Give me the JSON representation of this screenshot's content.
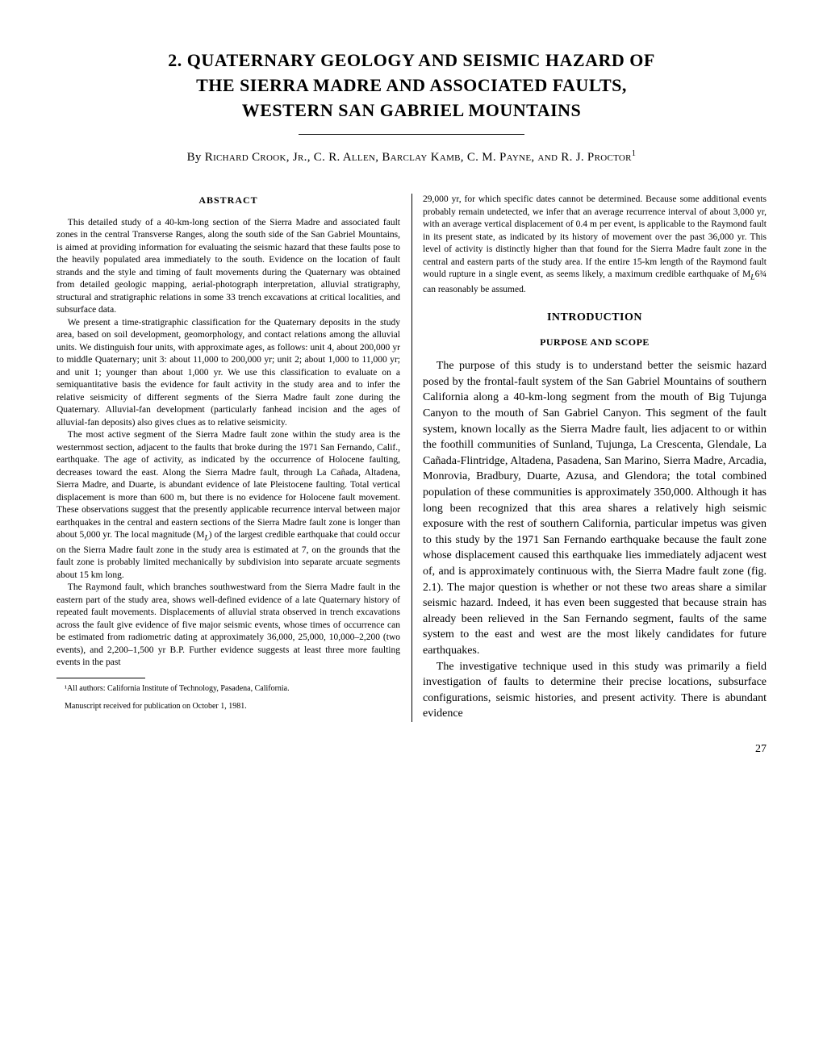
{
  "title": {
    "line1": "2. QUATERNARY GEOLOGY AND SEISMIC HAZARD OF",
    "line2": "THE SIERRA MADRE AND ASSOCIATED FAULTS,",
    "line3": "WESTERN SAN GABRIEL MOUNTAINS"
  },
  "authors_prefix": "By ",
  "authors": "Richard Crook, Jr., C. R. Allen, Barclay Kamb, C. M. Payne, and R. J. Proctor",
  "authors_sup": "1",
  "abstract_heading": "ABSTRACT",
  "abstract": {
    "p1": "This detailed study of a 40-km-long section of the Sierra Madre and associated fault zones in the central Transverse Ranges, along the south side of the San Gabriel Mountains, is aimed at providing information for evaluating the seismic hazard that these faults pose to the heavily populated area immediately to the south. Evidence on the location of fault strands and the style and timing of fault movements during the Quaternary was obtained from detailed geologic mapping, aerial-photograph interpretation, alluvial stratigraphy, structural and stratigraphic relations in some 33 trench excavations at critical localities, and subsurface data.",
    "p2": "We present a time-stratigraphic classification for the Quaternary deposits in the study area, based on soil development, geomorphology, and contact relations among the alluvial units. We distinguish four units, with approximate ages, as follows: unit 4, about 200,000 yr to middle Quaternary; unit 3: about 11,000 to 200,000 yr; unit 2; about 1,000 to 11,000 yr; and unit 1; younger than about 1,000 yr. We use this classification to evaluate on a semiquantitative basis the evidence for fault activity in the study area and to infer the relative seismicity of different segments of the Sierra Madre fault zone during the Quaternary. Alluvial-fan development (particularly fanhead incision and the ages of alluvial-fan deposits) also gives clues as to relative seismicity.",
    "p3": "The most active segment of the Sierra Madre fault zone within the study area is the westernmost section, adjacent to the faults that broke during the 1971 San Fernando, Calif., earthquake. The age of activity, as indicated by the occurrence of Holocene faulting, decreases toward the east. Along the Sierra Madre fault, through La Cañada, Altadena, Sierra Madre, and Duarte, is abundant evidence of late Pleistocene faulting. Total vertical displacement is more than 600 m, but there is no evidence for Holocene fault movement. These observations suggest that the presently applicable recurrence interval between major earthquakes in the central and eastern sections of the Sierra Madre fault zone is longer than about 5,000 yr. The local magnitude (M",
    "p3_sub": "L",
    "p3_cont": ") of the largest credible earthquake that could occur on the Sierra Madre fault zone in the study area is estimated at 7, on the grounds that the fault zone is probably limited mechanically by subdivision into separate arcuate segments about 15 km long.",
    "p4": "The Raymond fault, which branches southwestward from the Sierra Madre fault in the eastern part of the study area, shows well-defined evidence of a late Quaternary history of repeated fault movements. Displacements of alluvial strata observed in trench excavations across the fault give evidence of five major seismic events, whose times of occurrence can be estimated from radiometric dating at approximately 36,000, 25,000, 10,000–2,200 (two events), and 2,200–1,500 yr B.P. Further evidence suggests at least three more faulting events in the past",
    "p5": "29,000 yr, for which specific dates cannot be determined. Because some additional events probably remain undetected, we infer that an average recurrence interval of about 3,000 yr, with an average vertical displacement of 0.4 m per event, is applicable to the Raymond fault in its present state, as indicated by its history of movement over the past 36,000 yr. This level of activity is distinctly higher than that found for the Sierra Madre fault zone in the central and eastern parts of the study area. If the entire 15-km length of the Raymond fault would rupture in a single event, as seems likely, a maximum credible earthquake of M",
    "p5_sub": "L",
    "p5_cont": "6¾ can reasonably be assumed."
  },
  "intro_heading": "INTRODUCTION",
  "purpose_heading": "PURPOSE AND SCOPE",
  "intro": {
    "p1": "The purpose of this study is to understand better the seismic hazard posed by the frontal-fault system of the San Gabriel Mountains of southern California along a 40-km-long segment from the mouth of Big Tujunga Canyon to the mouth of San Gabriel Canyon. This segment of the fault system, known locally as the Sierra Madre fault, lies adjacent to or within the foothill communities of Sunland, Tujunga, La Crescenta, Glendale, La Cañada-Flintridge, Altadena, Pasadena, San Marino, Sierra Madre, Arcadia, Monrovia, Bradbury, Duarte, Azusa, and Glendora; the total combined population of these communities is approximately 350,000. Although it has long been recognized that this area shares a relatively high seismic exposure with the rest of southern California, particular impetus was given to this study by the 1971 San Fernando earthquake because the fault zone whose displacement caused this earthquake lies immediately adjacent west of, and is approximately continuous with, the Sierra Madre fault zone (fig. 2.1). The major question is whether or not these two areas share a similar seismic hazard. Indeed, it has even been suggested that because strain has already been relieved in the San Fernando segment, faults of the same system to the east and west are the most likely candidates for future earthquakes.",
    "p2": "The investigative technique used in this study was primarily a field investigation of faults to determine their precise locations, subsurface configurations, seismic histories, and present activity. There is abundant evidence"
  },
  "footnote": "¹All authors: California Institute of Technology, Pasadena, California.",
  "manuscript_note": "Manuscript received for publication on October 1, 1981.",
  "page_number": "27",
  "colors": {
    "text": "#000000",
    "background": "#ffffff",
    "rule": "#000000"
  },
  "typography": {
    "title_fontsize": 22,
    "author_fontsize": 15,
    "abstract_fontsize": 11.5,
    "body_fontsize": 14,
    "footnote_fontsize": 10
  }
}
